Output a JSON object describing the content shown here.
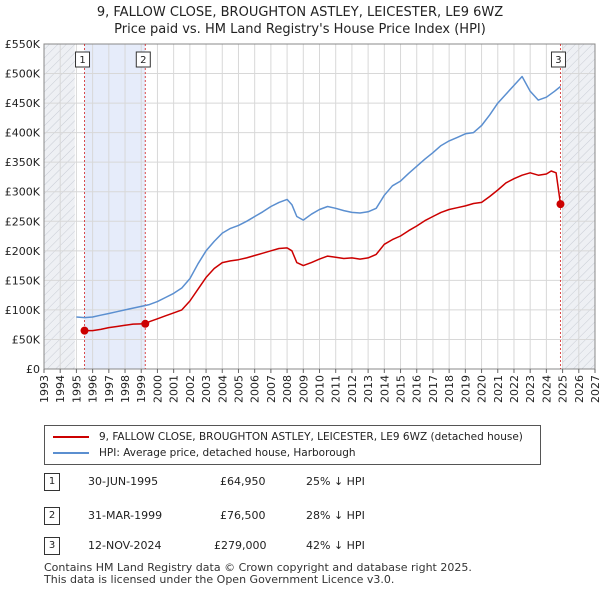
{
  "title": "9, FALLOW CLOSE, BROUGHTON ASTLEY, LEICESTER, LE9 6WZ",
  "subtitle": "Price paid vs. HM Land Registry's House Price Index (HPI)",
  "chart_data": {
    "type": "line",
    "title": "9, FALLOW CLOSE, BROUGHTON ASTLEY, LEICESTER, LE9 6WZ",
    "subtitle": "Price paid vs. HM Land Registry's House Price Index (HPI)",
    "xlim": [
      1993,
      2027
    ],
    "ylim": [
      0,
      550000
    ],
    "x_ticks": [
      "1993",
      "1994",
      "1995",
      "1996",
      "1997",
      "1998",
      "1999",
      "2000",
      "2001",
      "2002",
      "2003",
      "2004",
      "2005",
      "2006",
      "2007",
      "2008",
      "2009",
      "2010",
      "2011",
      "2012",
      "2013",
      "2014",
      "2015",
      "2016",
      "2017",
      "2018",
      "2019",
      "2020",
      "2021",
      "2022",
      "2023",
      "2024",
      "2025",
      "2026",
      "2027"
    ],
    "y_ticks": [
      {
        "value": 0,
        "label": "£0"
      },
      {
        "value": 50000,
        "label": "£50K"
      },
      {
        "value": 100000,
        "label": "£100K"
      },
      {
        "value": 150000,
        "label": "£150K"
      },
      {
        "value": 200000,
        "label": "£200K"
      },
      {
        "value": 250000,
        "label": "£250K"
      },
      {
        "value": 300000,
        "label": "£300K"
      },
      {
        "value": 350000,
        "label": "£350K"
      },
      {
        "value": 400000,
        "label": "£400K"
      },
      {
        "value": 450000,
        "label": "£450K"
      },
      {
        "value": 500000,
        "label": "£500K"
      },
      {
        "value": 550000,
        "label": "£550K"
      }
    ],
    "grid": true,
    "series": [
      {
        "name": "9, FALLOW CLOSE, BROUGHTON ASTLEY, LEICESTER, LE9 6WZ (detached house)",
        "color": "#cc0000",
        "x": [
          1995.5,
          1996,
          1996.5,
          1997,
          1997.5,
          1998,
          1998.5,
          1999.25,
          1999.5,
          2000,
          2000.5,
          2001,
          2001.5,
          2002,
          2002.5,
          2003,
          2003.5,
          2004,
          2004.5,
          2005,
          2005.5,
          2006,
          2006.5,
          2007,
          2007.5,
          2008,
          2008.3,
          2008.6,
          2009,
          2009.5,
          2010,
          2010.5,
          2011,
          2011.5,
          2012,
          2012.5,
          2013,
          2013.5,
          2014,
          2014.5,
          2015,
          2015.5,
          2016,
          2016.5,
          2017,
          2017.5,
          2018,
          2018.5,
          2019,
          2019.5,
          2020,
          2020.5,
          2021,
          2021.5,
          2022,
          2022.5,
          2023,
          2023.5,
          2024,
          2024.3,
          2024.6,
          2024.87
        ],
        "values": [
          64950,
          65000,
          67000,
          70000,
          72000,
          74000,
          76000,
          76500,
          80000,
          85000,
          90000,
          95000,
          100000,
          115000,
          135000,
          155000,
          170000,
          180000,
          183000,
          185000,
          188000,
          192000,
          196000,
          200000,
          204000,
          205000,
          200000,
          180000,
          175000,
          180000,
          186000,
          191000,
          189000,
          187000,
          188000,
          186000,
          188000,
          194000,
          211000,
          219000,
          225000,
          234000,
          242000,
          251000,
          258000,
          265000,
          270000,
          273000,
          276000,
          280000,
          282000,
          292000,
          303000,
          315000,
          322000,
          328000,
          332000,
          328000,
          330000,
          335000,
          332000,
          279000
        ]
      },
      {
        "name": "HPI: Average price, detached house, Harborough",
        "color": "#5b8fd0",
        "x": [
          1995,
          1995.5,
          1996,
          1996.5,
          1997,
          1997.5,
          1998,
          1998.5,
          1999,
          1999.5,
          2000,
          2000.5,
          2001,
          2001.5,
          2002,
          2002.5,
          2003,
          2003.5,
          2004,
          2004.5,
          2005,
          2005.5,
          2006,
          2006.5,
          2007,
          2007.5,
          2008,
          2008.3,
          2008.6,
          2009,
          2009.5,
          2010,
          2010.5,
          2011,
          2011.5,
          2012,
          2012.5,
          2013,
          2013.5,
          2014,
          2014.5,
          2015,
          2015.5,
          2016,
          2016.5,
          2017,
          2017.5,
          2018,
          2018.5,
          2019,
          2019.5,
          2020,
          2020.5,
          2021,
          2021.5,
          2022,
          2022.5,
          2023,
          2023.5,
          2024,
          2024.5,
          2024.87
        ],
        "values": [
          88000,
          87000,
          88000,
          91000,
          94000,
          97000,
          100000,
          103000,
          106000,
          109000,
          114000,
          121000,
          128000,
          137000,
          153000,
          178000,
          200000,
          216000,
          230000,
          238000,
          243000,
          250000,
          258000,
          266000,
          275000,
          282000,
          287000,
          278000,
          258000,
          252000,
          262000,
          270000,
          275000,
          272000,
          268000,
          265000,
          264000,
          266000,
          272000,
          294000,
          310000,
          318000,
          331000,
          343000,
          355000,
          366000,
          378000,
          386000,
          392000,
          398000,
          400000,
          412000,
          430000,
          450000,
          465000,
          480000,
          495000,
          470000,
          455000,
          460000,
          470000,
          478000
        ]
      }
    ],
    "transactions": [
      {
        "label": "1",
        "x": 1995.5,
        "value": 64950
      },
      {
        "label": "2",
        "x": 1999.25,
        "value": 76500
      },
      {
        "label": "3",
        "x": 2024.87,
        "value": 279000
      }
    ],
    "shaded_regions": [
      [
        1993,
        1994.9
      ],
      [
        1995.5,
        1999.25
      ],
      [
        2025,
        2027
      ]
    ]
  },
  "legend": {
    "property_label": "9, FALLOW CLOSE, BROUGHTON ASTLEY, LEICESTER, LE9 6WZ (detached house)",
    "hpi_label": "HPI: Average price, detached house, Harborough"
  },
  "transactions_table": [
    {
      "num": "1",
      "date": "30-JUN-1995",
      "price": "£64,950",
      "hpi": "25% ↓ HPI"
    },
    {
      "num": "2",
      "date": "31-MAR-1999",
      "price": "£76,500",
      "hpi": "28% ↓ HPI"
    },
    {
      "num": "3",
      "date": "12-NOV-2024",
      "price": "£279,000",
      "hpi": "42% ↓ HPI"
    }
  ],
  "footer": {
    "line1": "Contains HM Land Registry data © Crown copyright and database right 2025.",
    "line2": "This data is licensed under the Open Government Licence v3.0."
  }
}
